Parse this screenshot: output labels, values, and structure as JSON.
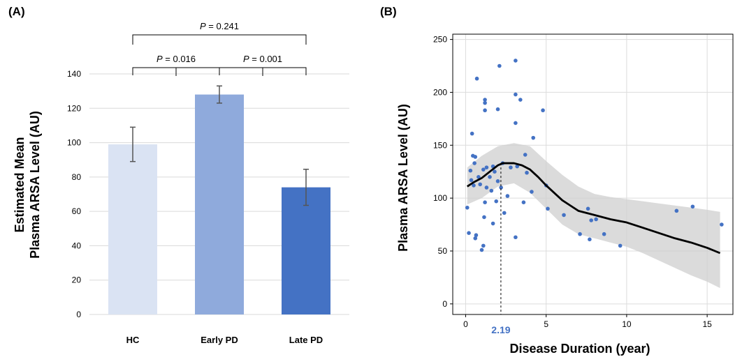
{
  "chart_data": [
    {
      "panel": "(A)",
      "type": "bar",
      "categories": [
        "HC",
        "Early PD",
        "Late PD"
      ],
      "values": [
        99,
        128,
        74
      ],
      "errors": [
        10,
        5,
        10.5
      ],
      "colors": [
        "#dae3f3",
        "#8faadc",
        "#4472c4"
      ],
      "ylabel_line1": "Estimated Mean",
      "ylabel_line2": "Plasma ARSA Level (AU)",
      "ylim": [
        0,
        140
      ],
      "yticks": [
        0,
        20,
        40,
        60,
        80,
        100,
        120,
        140
      ],
      "grid": true,
      "annotations": [
        {
          "from": 0,
          "to": 1,
          "p_label": "P",
          "p_text": " = 0.016"
        },
        {
          "from": 1,
          "to": 2,
          "p_label": "P",
          "p_text": " = 0.001"
        },
        {
          "from": 0,
          "to": 2,
          "p_label": "P",
          "p_text": " = 0.241"
        }
      ]
    },
    {
      "panel": "(B)",
      "type": "scatter",
      "xlabel": "Disease Duration (year)",
      "ylabel": "Plasma ARSA Level (AU)",
      "xlim": [
        -0.8,
        16.6
      ],
      "ylim": [
        -10,
        255
      ],
      "xticks": [
        0,
        5,
        10,
        15
      ],
      "yticks": [
        0,
        50,
        100,
        150,
        200,
        250
      ],
      "grid": true,
      "point_color": "#4472c4",
      "highlight": {
        "x": 2.19,
        "label": "2.19",
        "color": "#4472c4"
      },
      "points": [
        [
          0.1,
          91
        ],
        [
          0.2,
          67
        ],
        [
          0.3,
          126
        ],
        [
          0.35,
          117
        ],
        [
          0.4,
          161
        ],
        [
          0.45,
          140
        ],
        [
          0.5,
          112
        ],
        [
          0.55,
          133
        ],
        [
          0.6,
          139
        ],
        [
          0.6,
          62
        ],
        [
          0.65,
          65
        ],
        [
          0.7,
          213
        ],
        [
          0.8,
          120
        ],
        [
          0.9,
          113
        ],
        [
          1.0,
          51
        ],
        [
          1.1,
          55
        ],
        [
          1.1,
          127
        ],
        [
          1.15,
          82
        ],
        [
          1.2,
          96
        ],
        [
          1.2,
          183
        ],
        [
          1.2,
          190
        ],
        [
          1.2,
          193
        ],
        [
          1.3,
          129
        ],
        [
          1.3,
          110
        ],
        [
          1.5,
          120
        ],
        [
          1.6,
          107
        ],
        [
          1.7,
          130
        ],
        [
          1.7,
          76
        ],
        [
          1.8,
          125
        ],
        [
          1.9,
          97
        ],
        [
          2.0,
          184
        ],
        [
          2.0,
          116
        ],
        [
          2.1,
          225
        ],
        [
          2.2,
          110
        ],
        [
          2.3,
          133
        ],
        [
          2.4,
          86
        ],
        [
          2.6,
          102
        ],
        [
          2.8,
          129
        ],
        [
          3.1,
          230
        ],
        [
          3.1,
          198
        ],
        [
          3.1,
          171
        ],
        [
          3.1,
          63
        ],
        [
          3.2,
          130
        ],
        [
          3.4,
          193
        ],
        [
          3.6,
          96
        ],
        [
          3.7,
          141
        ],
        [
          3.8,
          124
        ],
        [
          4.1,
          106
        ],
        [
          4.2,
          157
        ],
        [
          4.8,
          183
        ],
        [
          5.0,
          112
        ],
        [
          5.1,
          90
        ],
        [
          6.1,
          84
        ],
        [
          7.1,
          66
        ],
        [
          7.6,
          90
        ],
        [
          7.7,
          61
        ],
        [
          7.8,
          79
        ],
        [
          8.1,
          80
        ],
        [
          8.6,
          66
        ],
        [
          9.6,
          55
        ],
        [
          13.1,
          88
        ],
        [
          14.1,
          92
        ],
        [
          15.9,
          75
        ]
      ],
      "smooth": [
        [
          0.1,
          111
        ],
        [
          0.5,
          115
        ],
        [
          1.0,
          119
        ],
        [
          1.5,
          125
        ],
        [
          2.0,
          131
        ],
        [
          2.3,
          133
        ],
        [
          3.0,
          133
        ],
        [
          3.5,
          131
        ],
        [
          4.0,
          127
        ],
        [
          4.5,
          120
        ],
        [
          5.0,
          112
        ],
        [
          5.5,
          105
        ],
        [
          6.0,
          98
        ],
        [
          6.5,
          93
        ],
        [
          7.0,
          88
        ],
        [
          7.5,
          86
        ],
        [
          8.0,
          84
        ],
        [
          9.0,
          80
        ],
        [
          10.0,
          77
        ],
        [
          11.0,
          72
        ],
        [
          12.0,
          67
        ],
        [
          13.0,
          62
        ],
        [
          14.0,
          58
        ],
        [
          15.0,
          53
        ],
        [
          15.8,
          48
        ]
      ],
      "band_upper": [
        [
          0.1,
          129
        ],
        [
          1.0,
          140
        ],
        [
          2.0,
          149
        ],
        [
          3.0,
          152
        ],
        [
          4.0,
          149
        ],
        [
          5.0,
          135
        ],
        [
          6.0,
          122
        ],
        [
          7.0,
          111
        ],
        [
          8.0,
          104
        ],
        [
          9.0,
          101
        ],
        [
          10.0,
          99
        ],
        [
          11.0,
          97
        ],
        [
          12.0,
          95
        ],
        [
          13.0,
          93
        ],
        [
          14.0,
          91
        ],
        [
          15.0,
          89
        ],
        [
          15.8,
          87
        ]
      ],
      "band_lower": [
        [
          0.1,
          94
        ],
        [
          1.0,
          100
        ],
        [
          2.0,
          111
        ],
        [
          3.0,
          114
        ],
        [
          4.0,
          105
        ],
        [
          5.0,
          90
        ],
        [
          6.0,
          75
        ],
        [
          7.0,
          66
        ],
        [
          8.0,
          62
        ],
        [
          9.0,
          58
        ],
        [
          10.0,
          54
        ],
        [
          11.0,
          48
        ],
        [
          12.0,
          41
        ],
        [
          13.0,
          34
        ],
        [
          14.0,
          27
        ],
        [
          15.0,
          21
        ],
        [
          15.8,
          15
        ]
      ]
    }
  ]
}
